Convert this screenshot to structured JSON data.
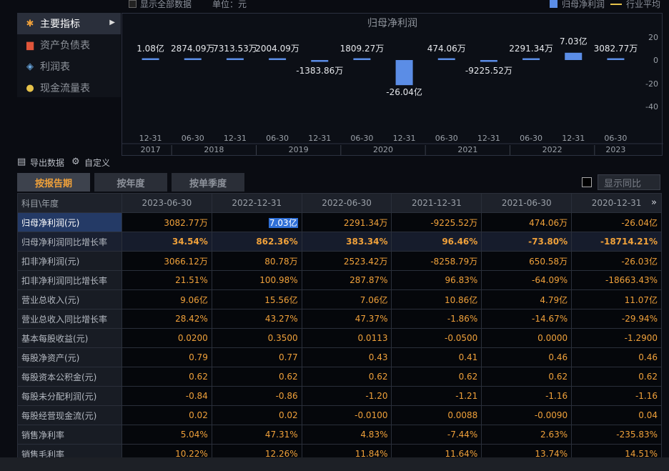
{
  "topbar": {
    "show_all_label": "显示全部数据",
    "unit_label": "单位：元",
    "legend_bar": "归母净利润",
    "legend_line": "行业平均"
  },
  "menu": {
    "items": [
      {
        "label": "主要指标",
        "icon": "star-icon",
        "active": true
      },
      {
        "label": "资产负债表",
        "icon": "document-icon",
        "active": false
      },
      {
        "label": "利润表",
        "icon": "cube-icon",
        "active": false
      },
      {
        "label": "现金流量表",
        "icon": "coins-icon",
        "active": false
      }
    ]
  },
  "chart_data": {
    "type": "bar",
    "title": "归母净利润",
    "categories": [
      "2017-12-31",
      "2018-06-30",
      "2018-12-31",
      "2019-06-30",
      "2019-12-31",
      "2020-06-30",
      "2020-12-31",
      "2021-06-30",
      "2021-12-31",
      "2022-06-30",
      "2022-12-31",
      "2023-06-30"
    ],
    "tick_labels": [
      "12-31",
      "06-30",
      "12-31",
      "06-30",
      "12-31",
      "06-30",
      "12-31",
      "06-30",
      "12-31",
      "06-30",
      "12-31",
      "06-30"
    ],
    "year_labels": [
      "2017",
      "2018",
      "2019",
      "2020",
      "2021",
      "2022",
      "2023"
    ],
    "values": [
      1.08,
      0.2874,
      0.7314,
      0.2004,
      -0.1384,
      0.1809,
      -26.04,
      0.0474,
      -0.9226,
      0.2291,
      7.03,
      0.3083
    ],
    "value_labels": [
      "1.08亿",
      "2874.09万",
      "7313.53万",
      "2004.09万",
      "-1383.86万",
      "1809.27万",
      "-26.04亿",
      "474.06万",
      "-9225.52万",
      "2291.34万",
      "7.03亿",
      "3082.77万"
    ],
    "y_unit": "亿",
    "y_ticks": [
      20,
      0,
      -20,
      -40
    ],
    "ylim": [
      -50,
      22
    ],
    "series_color": "#5b8de6",
    "grid": false
  },
  "tools": {
    "export_label": "导出数据",
    "custom_label": "自定义"
  },
  "tabs": [
    {
      "label": "按报告期",
      "active": true
    },
    {
      "label": "按年度",
      "active": false
    },
    {
      "label": "按单季度",
      "active": false
    }
  ],
  "yoy_label": "显示同比",
  "table": {
    "header_subject": "科目\\年度",
    "columns": [
      "2023-06-30",
      "2022-12-31",
      "2022-06-30",
      "2021-12-31",
      "2021-06-30",
      "2020-12-31"
    ],
    "rows": [
      {
        "label": "归母净利润(元)",
        "values": [
          "3082.77万",
          "7.03亿",
          "2291.34万",
          "-9225.52万",
          "474.06万",
          "-26.04亿"
        ],
        "selected": true,
        "growth": false
      },
      {
        "label": "归母净利润同比增长率",
        "values": [
          "34.54%",
          "862.36%",
          "383.34%",
          "96.46%",
          "-73.80%",
          "-18714.21%"
        ],
        "selected": false,
        "growth": true
      },
      {
        "label": "扣非净利润(元)",
        "values": [
          "3066.12万",
          "80.78万",
          "2523.42万",
          "-8258.79万",
          "650.58万",
          "-26.03亿"
        ],
        "selected": false,
        "growth": false
      },
      {
        "label": "扣非净利润同比增长率",
        "values": [
          "21.51%",
          "100.98%",
          "287.87%",
          "96.83%",
          "-64.09%",
          "-18663.43%"
        ],
        "selected": false,
        "growth": false
      },
      {
        "label": "营业总收入(元)",
        "values": [
          "9.06亿",
          "15.56亿",
          "7.06亿",
          "10.86亿",
          "4.79亿",
          "11.07亿"
        ],
        "selected": false,
        "growth": false
      },
      {
        "label": "营业总收入同比增长率",
        "values": [
          "28.42%",
          "43.27%",
          "47.37%",
          "-1.86%",
          "-14.67%",
          "-29.94%"
        ],
        "selected": false,
        "growth": false
      },
      {
        "label": "基本每股收益(元)",
        "values": [
          "0.0200",
          "0.3500",
          "0.0113",
          "-0.0500",
          "0.0000",
          "-1.2900"
        ],
        "selected": false,
        "growth": false
      },
      {
        "label": "每股净资产(元)",
        "values": [
          "0.79",
          "0.77",
          "0.43",
          "0.41",
          "0.46",
          "0.46"
        ],
        "selected": false,
        "growth": false
      },
      {
        "label": "每股资本公积金(元)",
        "values": [
          "0.62",
          "0.62",
          "0.62",
          "0.62",
          "0.62",
          "0.62"
        ],
        "selected": false,
        "growth": false
      },
      {
        "label": "每股未分配利润(元)",
        "values": [
          "-0.84",
          "-0.86",
          "-1.20",
          "-1.21",
          "-1.16",
          "-1.16"
        ],
        "selected": false,
        "growth": false
      },
      {
        "label": "每股经营现金流(元)",
        "values": [
          "0.02",
          "0.02",
          "-0.0100",
          "0.0088",
          "-0.0090",
          "0.04"
        ],
        "selected": false,
        "growth": false
      },
      {
        "label": "销售净利率",
        "values": [
          "5.04%",
          "47.31%",
          "4.83%",
          "-7.44%",
          "2.63%",
          "-235.83%"
        ],
        "selected": false,
        "growth": false
      },
      {
        "label": "销售毛利率",
        "values": [
          "10.22%",
          "12.26%",
          "11.84%",
          "11.64%",
          "13.74%",
          "14.51%"
        ],
        "selected": false,
        "growth": false
      }
    ]
  }
}
